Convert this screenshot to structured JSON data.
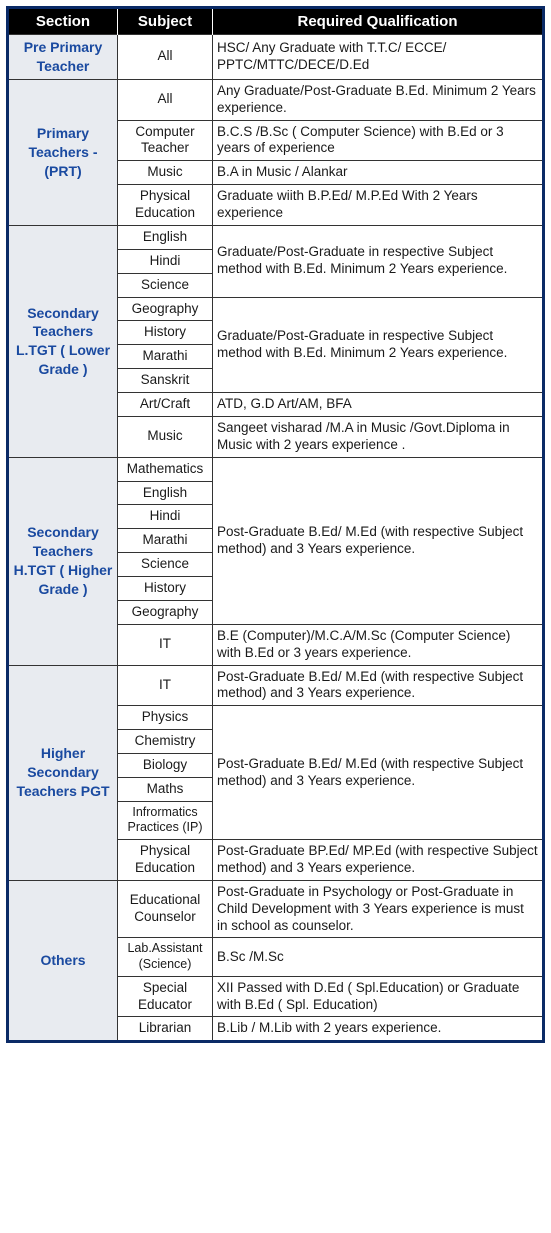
{
  "header": {
    "section": "Section",
    "subject": "Subject",
    "qualification": "Required Qualification"
  },
  "colors": {
    "header_bg": "#000000",
    "header_text": "#ffffff",
    "section_bg": "#e8ebf0",
    "section_text": "#1a4aa0",
    "border": "#333333",
    "outer_border": "#0a2a66",
    "body_text": "#1a1a1a"
  },
  "sections": {
    "preprimary": {
      "title": "Pre Primary Teacher",
      "rows": [
        {
          "subject": "All",
          "qual": "HSC/ Any Graduate with T.T.C/ ECCE/ PPTC/MTTC/DECE/D.Ed"
        }
      ]
    },
    "primary": {
      "title": "Primary Teachers - (PRT)",
      "rows": [
        {
          "subject": "All",
          "qual": "Any Graduate/Post-Graduate B.Ed. Minimum 2 Years experience."
        },
        {
          "subject": "Computer Teacher",
          "qual": "B.C.S /B.Sc ( Computer Science) with B.Ed or 3 years of experience"
        },
        {
          "subject": "Music",
          "qual": "B.A in Music / Alankar"
        },
        {
          "subject": "Physical Education",
          "qual": "Graduate wiith B.P.Ed/ M.P.Ed With 2 Years experience"
        }
      ]
    },
    "secondary_ltgt": {
      "title": "Secondary Teachers L.TGT ( Lower Grade )",
      "group1_subjects": [
        "English",
        "Hindi",
        "Science"
      ],
      "group1_qual": "Graduate/Post-Graduate in respective Subject method with B.Ed. Minimum 2 Years experience.",
      "group2_subjects": [
        "Geography",
        "History",
        "Marathi",
        "Sanskrit"
      ],
      "group2_qual": "Graduate/Post-Graduate in respective  Subject method with B.Ed. Minimum 2 Years experience.",
      "art_subject": "Art/Craft",
      "art_qual": "ATD, G.D Art/AM, BFA",
      "music_subject": "Music",
      "music_qual": "Sangeet visharad /M.A in Music /Govt.Diploma  in Music with 2 years experience ."
    },
    "secondary_htgt": {
      "title": "Secondary Teachers H.TGT ( Higher Grade )",
      "group_subjects": [
        "Mathematics",
        "English",
        "Hindi",
        "Marathi",
        "Science",
        "History",
        "Geography"
      ],
      "group_qual": "Post-Graduate B.Ed/ M.Ed  (with respective Subject method) and 3 Years experience.",
      "it_subject": "IT",
      "it_qual": "B.E (Computer)/M.C.A/M.Sc (Computer Science) with B.Ed or 3 years experience."
    },
    "pgt": {
      "title": "Higher Secondary Teachers PGT",
      "it_subject": "IT",
      "it_qual": "Post-Graduate B.Ed/ M.Ed  (with respective Subject method) and 3 Years experience.",
      "group_subjects": [
        "Physics",
        "Chemistry",
        "Biology",
        "Maths",
        "Infrormatics Practices (IP)"
      ],
      "group_qual": "Post-Graduate B.Ed/ M.Ed  (with respective Subject method) and 3 Years experience.",
      "pe_subject": "Physical Education",
      "pe_qual": "Post-Graduate BP.Ed/ MP.Ed (with respective Subject method) and 3 Years experience."
    },
    "others": {
      "title": "Others",
      "rows": [
        {
          "subject": "Educational Counselor",
          "qual": "Post-Graduate in Psychology or Post-Graduate in Child Development with 3 Years experience is must in school as counselor."
        },
        {
          "subject": "Lab.Assistant (Science)",
          "qual": "B.Sc /M.Sc"
        },
        {
          "subject": "Special Educator",
          "qual": "XII Passed with D.Ed ( Spl.Education) or Graduate with B.Ed ( Spl. Education)"
        },
        {
          "subject": "Librarian",
          "qual": "B.Lib / M.Lib with 2 years experience."
        }
      ]
    }
  }
}
